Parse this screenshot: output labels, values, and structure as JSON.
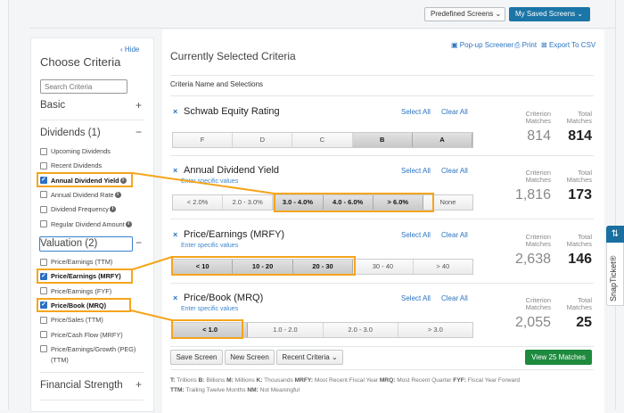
{
  "top": {
    "predefined": "Predefined Screens",
    "saved": "My Saved Screens",
    "chevron": "⌄"
  },
  "tools": {
    "popup": "Pop-up Screener",
    "print": "Print",
    "export": "Export To CSV"
  },
  "sidebar": {
    "hide": "Hide",
    "title": "Choose Criteria",
    "search_placeholder": "Search Criteria",
    "basic": "Basic",
    "dividends": "Dividends (1)",
    "valuation": "Valuation (2)",
    "financial": "Financial Strength",
    "div_items": [
      {
        "label": "Upcoming Dividends",
        "checked": false
      },
      {
        "label": "Recent Dividends",
        "checked": false
      },
      {
        "label": "Annual Dividend Yield",
        "checked": true
      },
      {
        "label": "Annual Dividend Rate",
        "checked": false
      },
      {
        "label": "Dividend Frequency",
        "checked": false
      },
      {
        "label": "Regular Dividend Amount",
        "checked": false
      }
    ],
    "val_items": [
      {
        "label": "Price/Earnings (TTM)",
        "checked": false
      },
      {
        "label": "Price/Earnings (MRFY)",
        "checked": true
      },
      {
        "label": "Price/Earnings (FYF)",
        "checked": false
      },
      {
        "label": "Price/Book (MRQ)",
        "checked": true
      },
      {
        "label": "Price/Sales (TTM)",
        "checked": false
      },
      {
        "label": "Price/Cash Flow (MRFY)",
        "checked": false
      },
      {
        "label": "Price/Earnings/Growth (PEG)",
        "checked": false
      }
    ],
    "peg_suffix": "(TTM)"
  },
  "main": {
    "title": "Currently Selected Criteria",
    "subheader": "Criteria Name and Selections",
    "select_all": "Select All",
    "clear_all": "Clear All",
    "enter": "Enter specific values",
    "crit_label": "Criterion Matches",
    "total_label": "Total Matches",
    "criteria": [
      {
        "name": "Schwab Equity Rating",
        "options": [
          "F",
          "D",
          "C",
          "B",
          "A"
        ],
        "selected": [
          "B",
          "A"
        ],
        "criterion": "814",
        "total": "814"
      },
      {
        "name": "Annual Dividend Yield",
        "options": [
          "< 2.0%",
          "2.0 - 3.0%",
          "3.0 - 4.0%",
          "4.0 - 6.0%",
          "> 6.0%",
          "None"
        ],
        "selected": [
          "3.0 - 4.0%",
          "4.0 - 6.0%",
          "> 6.0%"
        ],
        "criterion": "1,816",
        "total": "173"
      },
      {
        "name": "Price/Earnings (MRFY)",
        "options": [
          "< 10",
          "10 - 20",
          "20 - 30",
          "30 - 40",
          "> 40"
        ],
        "selected": [
          "< 10",
          "10 - 20",
          "20 - 30"
        ],
        "criterion": "2,638",
        "total": "146"
      },
      {
        "name": "Price/Book (MRQ)",
        "options": [
          "< 1.0",
          "1.0 - 2.0",
          "2.0 - 3.0",
          "> 3.0"
        ],
        "selected": [
          "< 1.0"
        ],
        "criterion": "2,055",
        "total": "25"
      }
    ]
  },
  "actions": {
    "save": "Save Screen",
    "new": "New Screen",
    "recent": "Recent Criteria",
    "view": "View 25 Matches"
  },
  "footnote": [
    [
      "T:",
      "Trillions"
    ],
    [
      "B:",
      "Billions"
    ],
    [
      "M:",
      "Millions"
    ],
    [
      "K:",
      "Thousands"
    ],
    [
      "MRFY:",
      "Most Recent Fiscal Year"
    ],
    [
      "MRQ:",
      "Most Recent Quarter"
    ],
    [
      "FYF:",
      "Fiscal Year Forward"
    ],
    [
      "TTM:",
      "Trailing Twelve Months"
    ],
    [
      "NM:",
      "Not Meaningful"
    ]
  ],
  "snap": {
    "label": "SnapTicket®",
    "icon": "⇅"
  },
  "colors": {
    "highlight": "#f5a51d",
    "primary": "#1b75a6",
    "green": "#1e8a3e",
    "link": "#2a73c0"
  }
}
